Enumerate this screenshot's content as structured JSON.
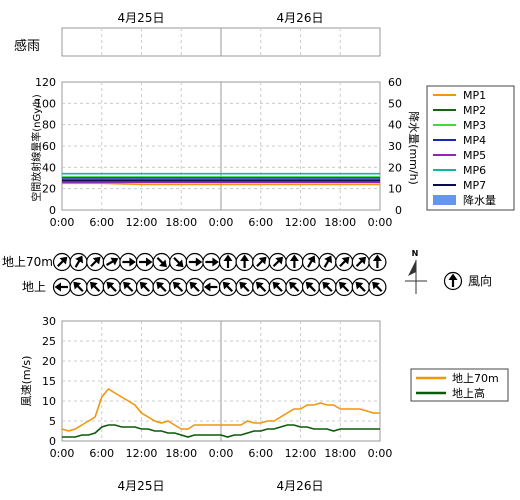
{
  "dates": {
    "day1": "4月25日",
    "day2": "4月26日"
  },
  "rain_sense_label": "感雨",
  "chart_data": [
    {
      "type": "line",
      "ylabel": "空間放射線量率(nGy/h)",
      "y2label": "降水量(mm/h)",
      "ylim": [
        0,
        120
      ],
      "y2lim": [
        0,
        60
      ],
      "yticks": [
        "0",
        "20",
        "40",
        "60",
        "80",
        "100",
        "120"
      ],
      "y2ticks": [
        "0",
        "10",
        "20",
        "30",
        "40",
        "50",
        "60"
      ],
      "xticks": [
        "0:00",
        "6:00",
        "12:00",
        "18:00",
        "0:00",
        "6:00",
        "12:00",
        "18:00",
        "0:00"
      ],
      "grid": true,
      "legend_position": "right",
      "hours": [
        0,
        48
      ],
      "series": [
        {
          "name": "MP1",
          "color": "#f0960a",
          "x": [
            0,
            6,
            12,
            18,
            24,
            30,
            36,
            42,
            48
          ],
          "values": [
            25,
            25,
            24,
            24,
            24,
            24,
            24,
            24,
            24
          ]
        },
        {
          "name": "MP2",
          "color": "#146414",
          "x": [
            0,
            6,
            12,
            18,
            24,
            30,
            36,
            42,
            48
          ],
          "values": [
            27,
            27,
            27,
            27,
            27,
            27,
            27,
            27,
            27
          ]
        },
        {
          "name": "MP3",
          "color": "#3cdc3c",
          "x": [
            0,
            6,
            12,
            18,
            24,
            30,
            36,
            42,
            48
          ],
          "values": [
            31,
            31,
            31,
            31,
            31,
            31,
            31,
            31,
            31
          ]
        },
        {
          "name": "MP4",
          "color": "#1428b4",
          "x": [
            0,
            6,
            12,
            18,
            24,
            30,
            36,
            42,
            48
          ],
          "values": [
            30,
            30,
            30,
            30,
            30,
            30,
            30,
            30,
            30
          ]
        },
        {
          "name": "MP5",
          "color": "#8c28b4",
          "x": [
            0,
            6,
            12,
            18,
            24,
            30,
            36,
            42,
            48
          ],
          "values": [
            26,
            26,
            26,
            26,
            26,
            26,
            26,
            26,
            26
          ]
        },
        {
          "name": "MP6",
          "color": "#14b4a0",
          "x": [
            0,
            6,
            12,
            18,
            24,
            30,
            36,
            42,
            48
          ],
          "values": [
            34,
            34,
            34,
            34,
            34,
            34,
            34,
            34,
            34
          ]
        },
        {
          "name": "MP7",
          "color": "#0a0a50",
          "x": [
            0,
            6,
            12,
            18,
            24,
            30,
            36,
            42,
            48
          ],
          "values": [
            28,
            28,
            28,
            28,
            28,
            28,
            28,
            28,
            28
          ]
        }
      ],
      "precip": {
        "name": "降水量",
        "color": "#6496f0",
        "values": []
      }
    },
    {
      "type": "table",
      "rows": [
        {
          "label": "地上70m",
          "directions_deg": [
            45,
            30,
            45,
            60,
            90,
            90,
            135,
            135,
            90,
            90,
            0,
            0,
            45,
            45,
            0,
            30,
            30,
            45,
            45,
            0
          ]
        },
        {
          "label": "地上",
          "directions_deg": [
            270,
            315,
            315,
            315,
            315,
            315,
            315,
            315,
            315,
            270,
            315,
            315,
            315,
            315,
            315,
            315,
            315,
            315,
            315,
            315
          ]
        }
      ],
      "legend_label": "風向",
      "north_label": "N",
      "legend_direction_deg": 0
    },
    {
      "type": "line",
      "ylabel": "風速(m/s)",
      "ylim": [
        0,
        30
      ],
      "yticks": [
        "0",
        "5",
        "10",
        "15",
        "20",
        "25",
        "30"
      ],
      "xticks": [
        "0:00",
        "6:00",
        "12:00",
        "18:00",
        "0:00",
        "6:00",
        "12:00",
        "18:00",
        "0:00"
      ],
      "grid": true,
      "legend_position": "right",
      "hours": [
        0,
        48
      ],
      "series": [
        {
          "name": "地上70m",
          "color": "#f0960a",
          "x": [
            0,
            1,
            2,
            3,
            4,
            5,
            6,
            7,
            8,
            9,
            10,
            11,
            12,
            13,
            14,
            15,
            16,
            17,
            18,
            19,
            20,
            21,
            22,
            23,
            24,
            25,
            26,
            27,
            28,
            29,
            30,
            31,
            32,
            33,
            34,
            35,
            36,
            37,
            38,
            39,
            40,
            41,
            42,
            43,
            44,
            45,
            46,
            47,
            48
          ],
          "values": [
            3,
            2.5,
            3,
            4,
            5,
            6,
            11,
            13,
            12,
            11,
            10,
            9,
            7,
            6,
            5,
            4.5,
            5,
            4,
            3,
            3,
            4,
            4,
            4,
            4,
            4,
            4,
            4,
            4,
            5,
            4.5,
            4.5,
            5,
            5,
            6,
            7,
            8,
            8,
            9,
            9,
            9.5,
            9,
            9,
            8,
            8,
            8,
            8,
            7.5,
            7,
            7
          ]
        },
        {
          "name": "地上高",
          "color": "#0a5a0a",
          "x": [
            0,
            1,
            2,
            3,
            4,
            5,
            6,
            7,
            8,
            9,
            10,
            11,
            12,
            13,
            14,
            15,
            16,
            17,
            18,
            19,
            20,
            21,
            22,
            23,
            24,
            25,
            26,
            27,
            28,
            29,
            30,
            31,
            32,
            33,
            34,
            35,
            36,
            37,
            38,
            39,
            40,
            41,
            42,
            43,
            44,
            45,
            46,
            47,
            48
          ],
          "values": [
            1,
            1,
            1,
            1.5,
            1.5,
            2,
            3.5,
            4,
            4,
            3.5,
            3.5,
            3.5,
            3,
            3,
            2.5,
            2.5,
            2,
            2,
            1.5,
            1,
            1.5,
            1.5,
            1.5,
            1.5,
            1.5,
            1,
            1.5,
            1.5,
            2,
            2.5,
            2.5,
            3,
            3,
            3.5,
            4,
            4,
            3.5,
            3.5,
            3,
            3,
            3,
            2.5,
            3,
            3,
            3,
            3,
            3,
            3,
            3
          ]
        }
      ]
    }
  ]
}
